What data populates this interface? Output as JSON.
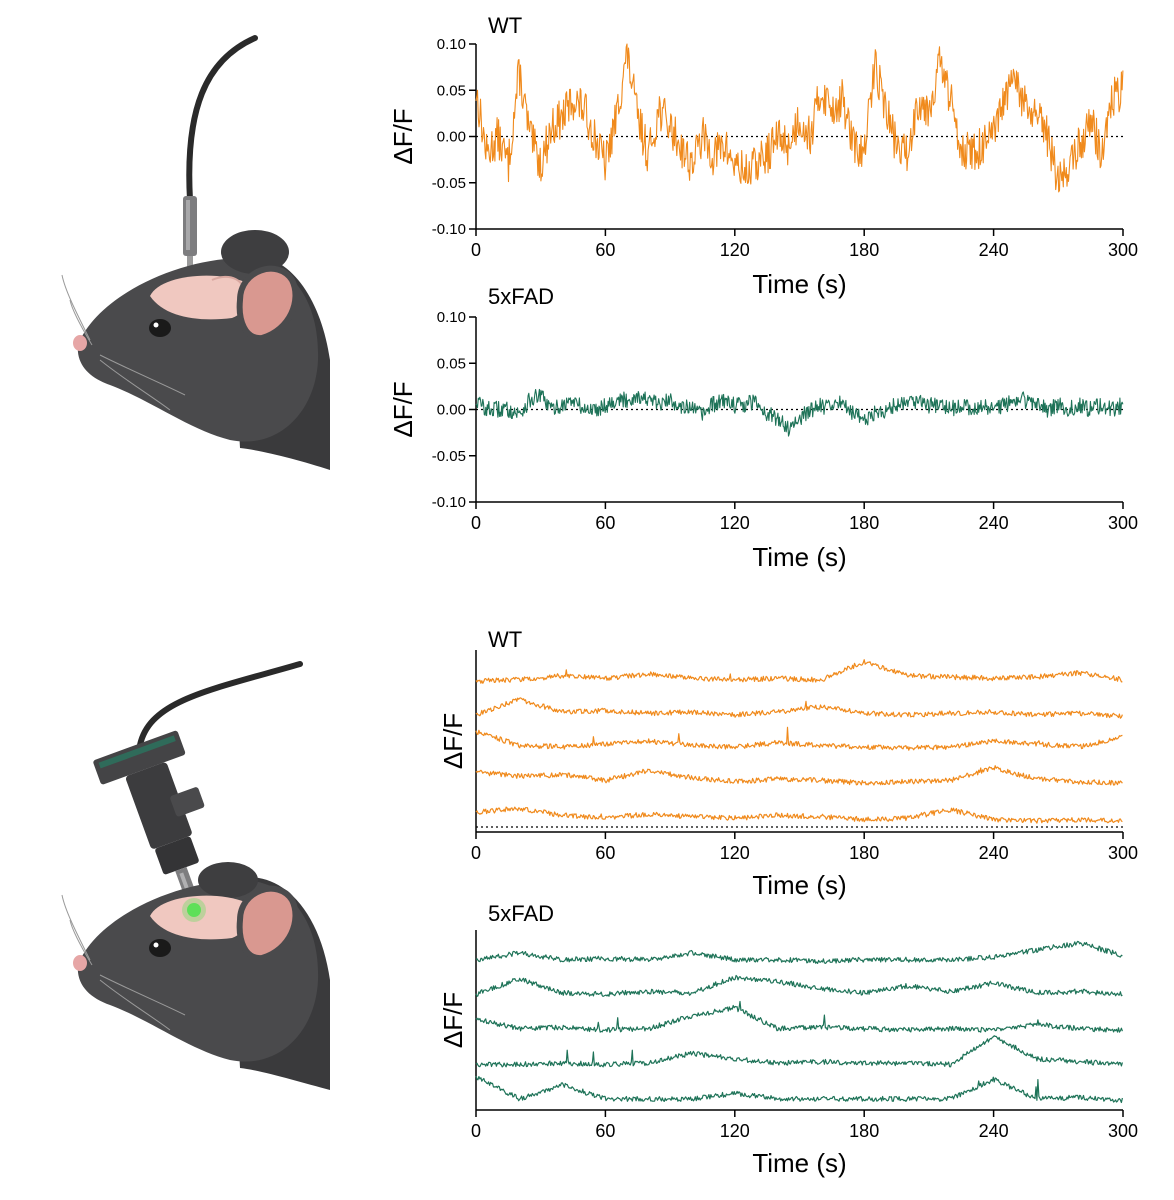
{
  "colors": {
    "wt": "#F08A1C",
    "fad": "#1E7358",
    "axis": "#000000",
    "mouse_fur": "#4A4A4C",
    "mouse_fur_dark": "#3A3A3C",
    "brain": "#F0C8C0",
    "ear": "#D99890",
    "cable": "#2A2A2A",
    "fiber": "#8C8C8C",
    "scope": "#3C3C3E",
    "gcamp": "#5FE05A"
  },
  "illustrations": [
    {
      "name": "fiber-photometry-mouse",
      "icon": "mouse-head-with-optic-fiber-icon"
    },
    {
      "name": "miniscope-mouse",
      "icon": "mouse-head-with-miniscope-icon"
    }
  ],
  "chart_data": [
    {
      "type": "line",
      "panel": "wt-photometry",
      "title": "WT",
      "xlabel": "Time (s)",
      "ylabel": "ΔF/F",
      "xlim": [
        0,
        300
      ],
      "ylim": [
        -0.1,
        0.1
      ],
      "xticks": [
        0,
        60,
        120,
        180,
        240,
        300
      ],
      "yticks": [
        "-0.10",
        "-0.05",
        "0.00",
        "0.05",
        "0.10"
      ],
      "baseline": 0,
      "color_key": "wt",
      "series": [
        {
          "x": [
            0,
            5,
            10,
            15,
            20,
            25,
            30,
            35,
            40,
            45,
            50,
            55,
            60,
            65,
            70,
            75,
            80,
            85,
            90,
            95,
            100,
            105,
            110,
            115,
            120,
            125,
            130,
            135,
            140,
            145,
            150,
            155,
            160,
            165,
            170,
            175,
            180,
            185,
            190,
            195,
            200,
            205,
            210,
            215,
            220,
            225,
            230,
            235,
            240,
            245,
            250,
            255,
            260,
            265,
            270,
            275,
            280,
            285,
            290,
            295,
            300
          ],
          "y": [
            0.05,
            -0.02,
            0.0,
            -0.03,
            0.07,
            0.0,
            -0.03,
            0.01,
            0.02,
            0.04,
            0.03,
            0.0,
            -0.03,
            0.02,
            0.09,
            0.02,
            -0.02,
            0.03,
            0.01,
            -0.01,
            -0.03,
            0.0,
            -0.02,
            -0.01,
            -0.03,
            -0.04,
            -0.03,
            -0.02,
            0.0,
            -0.01,
            0.02,
            0.0,
            0.05,
            0.03,
            0.04,
            -0.01,
            -0.02,
            0.08,
            0.03,
            -0.01,
            -0.02,
            0.04,
            0.03,
            0.08,
            0.04,
            -0.01,
            -0.02,
            -0.01,
            0.0,
            0.04,
            0.06,
            0.03,
            0.02,
            0.0,
            -0.05,
            -0.03,
            -0.01,
            0.02,
            -0.02,
            0.04,
            0.05
          ]
        }
      ]
    },
    {
      "type": "line",
      "panel": "fad-photometry",
      "title": "5xFAD",
      "xlabel": "Time (s)",
      "ylabel": "ΔF/F",
      "xlim": [
        0,
        300
      ],
      "ylim": [
        -0.1,
        0.1
      ],
      "xticks": [
        0,
        60,
        120,
        180,
        240,
        300
      ],
      "yticks": [
        "-0.10",
        "-0.05",
        "0.00",
        "0.05",
        "0.10"
      ],
      "baseline": 0,
      "color_key": "fad",
      "series": [
        {
          "x": [
            0,
            5,
            10,
            15,
            20,
            25,
            30,
            35,
            40,
            45,
            50,
            55,
            60,
            65,
            70,
            75,
            80,
            85,
            90,
            95,
            100,
            105,
            110,
            115,
            120,
            125,
            130,
            135,
            140,
            145,
            150,
            155,
            160,
            165,
            170,
            175,
            180,
            185,
            190,
            195,
            200,
            205,
            210,
            215,
            220,
            225,
            230,
            235,
            240,
            245,
            250,
            255,
            260,
            265,
            270,
            275,
            280,
            285,
            290,
            295,
            300
          ],
          "y": [
            0.01,
            0.0,
            0.0,
            0.0,
            -0.005,
            0.01,
            0.015,
            0.0,
            0.005,
            0.01,
            0.0,
            0.0,
            0.005,
            0.01,
            0.01,
            0.015,
            0.01,
            0.005,
            0.01,
            0.005,
            0.0,
            -0.005,
            0.005,
            0.01,
            0.005,
            0.005,
            0.01,
            -0.005,
            -0.01,
            -0.02,
            -0.01,
            0.0,
            0.005,
            0.0,
            0.01,
            -0.005,
            -0.01,
            -0.005,
            0.0,
            0.005,
            0.01,
            0.01,
            0.005,
            0.005,
            0.0,
            0.005,
            0.0,
            0.005,
            0.0,
            0.005,
            0.01,
            0.01,
            0.005,
            0.0,
            0.005,
            0.0,
            0.005,
            0.0,
            0.005,
            0.0,
            0.005
          ]
        }
      ]
    },
    {
      "type": "line",
      "panel": "wt-miniscope",
      "title": "WT",
      "xlabel": "Time (s)",
      "ylabel": "ΔF/F",
      "xlim": [
        0,
        300
      ],
      "xticks": [
        0,
        60,
        120,
        180,
        240,
        300
      ],
      "stacked": true,
      "baseline": 0,
      "color_key": "wt",
      "series": [
        {
          "x": [
            0,
            20,
            40,
            60,
            80,
            100,
            120,
            140,
            160,
            180,
            200,
            220,
            240,
            260,
            280,
            300
          ],
          "y": [
            0.2,
            0.3,
            0.6,
            0.4,
            0.7,
            0.4,
            0.3,
            0.4,
            0.3,
            1.6,
            0.6,
            0.5,
            0.4,
            0.5,
            0.8,
            0.3
          ]
        },
        {
          "x": [
            0,
            20,
            40,
            60,
            80,
            100,
            120,
            140,
            160,
            180,
            200,
            220,
            240,
            260,
            280,
            300
          ],
          "y": [
            0.3,
            1.4,
            0.5,
            0.6,
            0.4,
            0.5,
            0.3,
            0.5,
            0.9,
            0.4,
            0.3,
            0.4,
            0.5,
            0.3,
            0.4,
            0.2
          ]
        },
        {
          "x": [
            0,
            20,
            40,
            60,
            80,
            100,
            120,
            140,
            160,
            180,
            200,
            220,
            240,
            260,
            280,
            300
          ],
          "y": [
            1.6,
            0.6,
            0.5,
            0.7,
            0.9,
            0.6,
            0.5,
            0.8,
            0.6,
            0.5,
            0.4,
            0.5,
            0.9,
            0.7,
            0.5,
            1.2
          ]
        },
        {
          "x": [
            0,
            20,
            40,
            60,
            80,
            100,
            120,
            140,
            160,
            180,
            200,
            220,
            240,
            260,
            280,
            300
          ],
          "y": [
            1.2,
            0.9,
            1.0,
            0.6,
            1.3,
            0.8,
            0.5,
            0.7,
            0.6,
            0.4,
            0.5,
            0.6,
            1.5,
            0.7,
            0.5,
            0.4
          ]
        },
        {
          "x": [
            0,
            20,
            40,
            60,
            80,
            100,
            120,
            140,
            160,
            180,
            200,
            220,
            240,
            260,
            280,
            300
          ],
          "y": [
            0.8,
            1.1,
            0.6,
            0.4,
            0.7,
            0.5,
            0.4,
            0.6,
            0.5,
            0.3,
            0.4,
            1.0,
            0.3,
            0.2,
            0.3,
            0.2
          ]
        }
      ]
    },
    {
      "type": "line",
      "panel": "fad-miniscope",
      "title": "5xFAD",
      "xlabel": "Time (s)",
      "ylabel": "ΔF/F",
      "xlim": [
        0,
        300
      ],
      "xticks": [
        0,
        60,
        120,
        180,
        240,
        300
      ],
      "stacked": true,
      "color_key": "fad",
      "series": [
        {
          "x": [
            0,
            20,
            40,
            60,
            80,
            100,
            120,
            140,
            160,
            180,
            200,
            220,
            240,
            260,
            280,
            300
          ],
          "y": [
            0.3,
            0.8,
            0.3,
            0.4,
            0.3,
            0.8,
            0.3,
            0.3,
            0.2,
            0.3,
            0.3,
            0.3,
            0.5,
            1.0,
            1.5,
            0.6
          ]
        },
        {
          "x": [
            0,
            20,
            40,
            60,
            80,
            100,
            120,
            140,
            160,
            180,
            200,
            220,
            240,
            260,
            280,
            300
          ],
          "y": [
            0.3,
            1.4,
            0.4,
            0.3,
            0.5,
            0.4,
            1.5,
            1.2,
            0.7,
            0.4,
            0.9,
            0.5,
            1.1,
            0.4,
            0.5,
            0.3
          ]
        },
        {
          "x": [
            0,
            20,
            40,
            60,
            80,
            100,
            120,
            140,
            160,
            180,
            200,
            220,
            240,
            260,
            280,
            300
          ],
          "y": [
            1.0,
            0.3,
            0.4,
            0.2,
            0.3,
            1.2,
            1.8,
            0.3,
            0.4,
            0.3,
            0.2,
            0.3,
            0.2,
            0.6,
            0.3,
            0.2
          ]
        },
        {
          "x": [
            0,
            20,
            40,
            60,
            80,
            100,
            120,
            140,
            160,
            180,
            200,
            220,
            240,
            260,
            280,
            300
          ],
          "y": [
            0.2,
            0.2,
            0.3,
            0.2,
            0.3,
            1.0,
            0.6,
            0.3,
            0.4,
            0.3,
            0.3,
            0.2,
            2.2,
            0.6,
            0.4,
            0.2
          ]
        },
        {
          "x": [
            0,
            20,
            40,
            60,
            80,
            100,
            120,
            140,
            160,
            180,
            200,
            220,
            240,
            260,
            280,
            300
          ],
          "y": [
            1.8,
            0.2,
            1.2,
            0.2,
            0.2,
            0.2,
            0.6,
            0.2,
            0.2,
            0.2,
            0.2,
            0.2,
            1.6,
            0.2,
            0.3,
            0.1
          ]
        }
      ]
    }
  ]
}
